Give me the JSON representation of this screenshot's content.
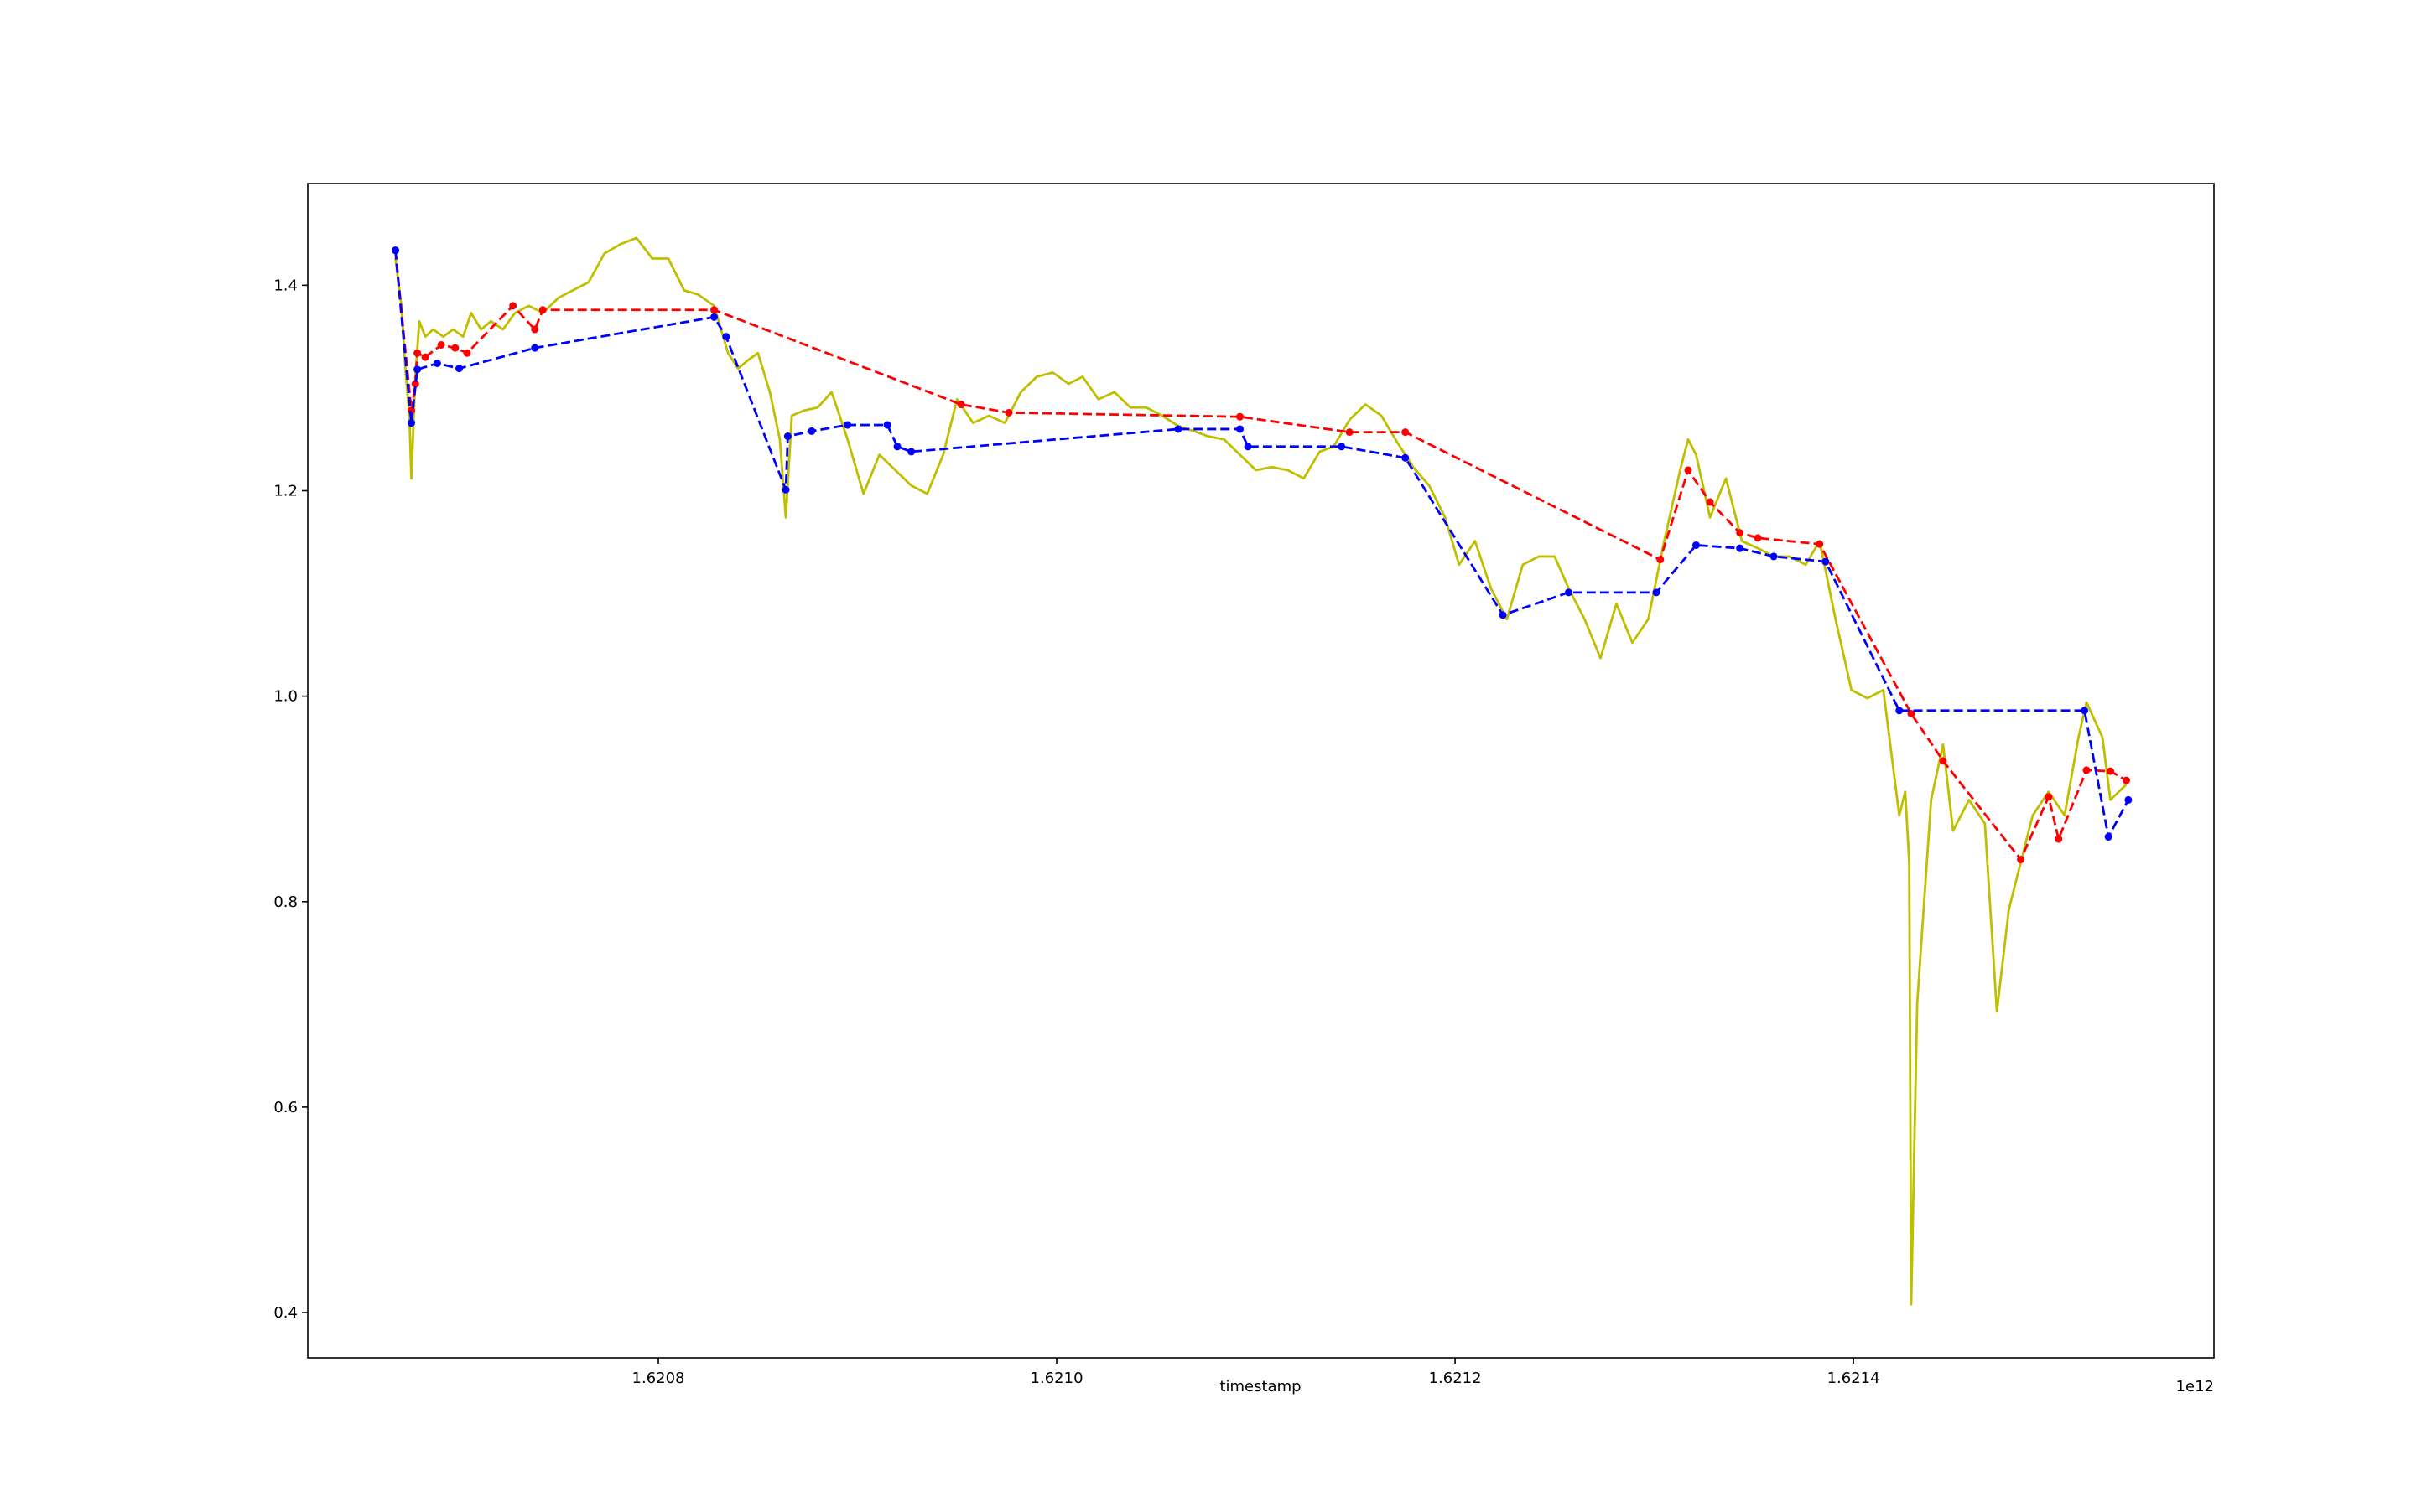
{
  "chart_data": {
    "type": "line",
    "xlabel": "timestamp",
    "x_offset_label": "1e12",
    "xlim": [
      1.620624,
      1.621581
    ],
    "ylim": [
      0.356,
      1.499
    ],
    "xticks": [
      1.6208,
      {
        "value": 1.621,
        "label": "1.6210"
      },
      1.6212,
      1.6214
    ],
    "yticks": [
      0.4,
      0.6,
      0.8,
      {
        "value": 1.0,
        "label": "1.0"
      },
      1.2,
      1.4
    ],
    "grid": false,
    "series": [
      {
        "color": "#bfbf00",
        "linestyle": "solid",
        "marker": false,
        "x": [
          1.620668,
          1.620671,
          1.620673,
          1.620675,
          1.620676,
          1.620678,
          1.62068,
          1.620683,
          1.620687,
          1.620692,
          1.620697,
          1.620702,
          1.620706,
          1.620711,
          1.620716,
          1.620722,
          1.620728,
          1.620735,
          1.620742,
          1.62075,
          1.620757,
          1.620765,
          1.620773,
          1.620781,
          1.620789,
          1.620797,
          1.620805,
          1.620813,
          1.62082,
          1.620828,
          1.620835,
          1.62084,
          1.620845,
          1.62085,
          1.620856,
          1.620861,
          1.620864,
          1.620867,
          1.620873,
          1.62088,
          1.620887,
          1.620895,
          1.620903,
          1.620911,
          1.620919,
          1.620927,
          1.620935,
          1.620943,
          1.62095,
          1.620958,
          1.620966,
          1.620974,
          1.620982,
          1.62099,
          1.620998,
          1.621006,
          1.621013,
          1.621021,
          1.621029,
          1.621037,
          1.621045,
          1.621053,
          1.621061,
          1.621069,
          1.621076,
          1.621084,
          1.621092,
          1.6211,
          1.621108,
          1.621116,
          1.621124,
          1.621132,
          1.621139,
          1.621147,
          1.621155,
          1.621163,
          1.621171,
          1.621179,
          1.621187,
          1.621195,
          1.621202,
          1.62121,
          1.621218,
          1.621226,
          1.621234,
          1.621242,
          1.62125,
          1.621257,
          1.621265,
          1.621273,
          1.621281,
          1.621289,
          1.621297,
          1.621305,
          1.621313,
          1.621317,
          1.621321,
          1.621328,
          1.621336,
          1.621344,
          1.621352,
          1.62136,
          1.621368,
          1.621376,
          1.621383,
          1.621391,
          1.621399,
          1.621407,
          1.621415,
          1.621423,
          1.621426,
          1.621428,
          1.621429,
          1.621432,
          1.621439,
          1.621445,
          1.62145,
          1.621458,
          1.621466,
          1.621472,
          1.621478,
          1.621482,
          1.62149,
          1.621498,
          1.621506,
          1.621513,
          1.621517,
          1.621525,
          1.621529,
          1.621537
        ],
        "values": [
          1.426,
          1.38,
          1.319,
          1.273,
          1.212,
          1.311,
          1.365,
          1.35,
          1.357,
          1.35,
          1.357,
          1.35,
          1.373,
          1.357,
          1.365,
          1.357,
          1.373,
          1.38,
          1.373,
          1.388,
          1.395,
          1.403,
          1.431,
          1.44,
          1.446,
          1.426,
          1.426,
          1.395,
          1.391,
          1.38,
          1.334,
          1.319,
          1.327,
          1.334,
          1.296,
          1.25,
          1.174,
          1.273,
          1.278,
          1.281,
          1.296,
          1.25,
          1.197,
          1.235,
          1.22,
          1.205,
          1.197,
          1.235,
          1.289,
          1.266,
          1.273,
          1.266,
          1.296,
          1.311,
          1.315,
          1.304,
          1.311,
          1.289,
          1.296,
          1.281,
          1.281,
          1.273,
          1.263,
          1.258,
          1.253,
          1.25,
          1.235,
          1.22,
          1.223,
          1.22,
          1.212,
          1.238,
          1.243,
          1.269,
          1.284,
          1.273,
          1.247,
          1.223,
          1.205,
          1.174,
          1.128,
          1.151,
          1.105,
          1.075,
          1.128,
          1.136,
          1.136,
          1.105,
          1.075,
          1.037,
          1.09,
          1.052,
          1.075,
          1.151,
          1.22,
          1.25,
          1.235,
          1.174,
          1.212,
          1.151,
          1.144,
          1.136,
          1.136,
          1.128,
          1.151,
          1.075,
          1.006,
          0.998,
          1.006,
          0.884,
          0.907,
          0.838,
          0.408,
          0.701,
          0.899,
          0.953,
          0.869,
          0.899,
          0.876,
          0.693,
          0.792,
          0.823,
          0.884,
          0.907,
          0.884,
          0.96,
          0.994,
          0.96,
          0.899,
          0.914
        ]
      },
      {
        "color": "red",
        "linestyle": "dashed",
        "marker": true,
        "x": [
          1.620668,
          1.620676,
          1.620678,
          1.620679,
          1.620683,
          1.620691,
          1.620698,
          1.620704,
          1.620727,
          1.620738,
          1.620742,
          1.620828,
          1.620952,
          1.620976,
          1.621092,
          1.621147,
          1.621175,
          1.621303,
          1.621317,
          1.621328,
          1.621343,
          1.621352,
          1.621383,
          1.621429,
          1.621445,
          1.621484,
          1.621498,
          1.621503,
          1.621517,
          1.621529,
          1.621537
        ],
        "values": [
          1.434,
          1.278,
          1.304,
          1.334,
          1.33,
          1.342,
          1.339,
          1.334,
          1.38,
          1.357,
          1.376,
          1.376,
          1.284,
          1.276,
          1.272,
          1.257,
          1.257,
          1.133,
          1.22,
          1.189,
          1.159,
          1.154,
          1.148,
          0.983,
          0.937,
          0.841,
          0.902,
          0.861,
          0.928,
          0.927,
          0.918
        ]
      },
      {
        "color": "blue",
        "linestyle": "dashed",
        "marker": true,
        "x": [
          1.620668,
          1.620676,
          1.620679,
          1.620689,
          1.6207,
          1.620738,
          1.620828,
          1.620834,
          1.620864,
          1.620865,
          1.620877,
          1.620895,
          1.620915,
          1.62092,
          1.620927,
          1.621061,
          1.621092,
          1.621096,
          1.621143,
          1.621175,
          1.621224,
          1.621257,
          1.621301,
          1.621321,
          1.621343,
          1.62136,
          1.621386,
          1.621423,
          1.621516,
          1.621528,
          1.621538
        ],
        "values": [
          1.434,
          1.266,
          1.318,
          1.324,
          1.319,
          1.339,
          1.369,
          1.35,
          1.201,
          1.253,
          1.258,
          1.264,
          1.264,
          1.243,
          1.238,
          1.26,
          1.26,
          1.243,
          1.243,
          1.232,
          1.079,
          1.101,
          1.101,
          1.147,
          1.144,
          1.136,
          1.131,
          0.986,
          0.986,
          0.863,
          0.899
        ]
      }
    ]
  }
}
